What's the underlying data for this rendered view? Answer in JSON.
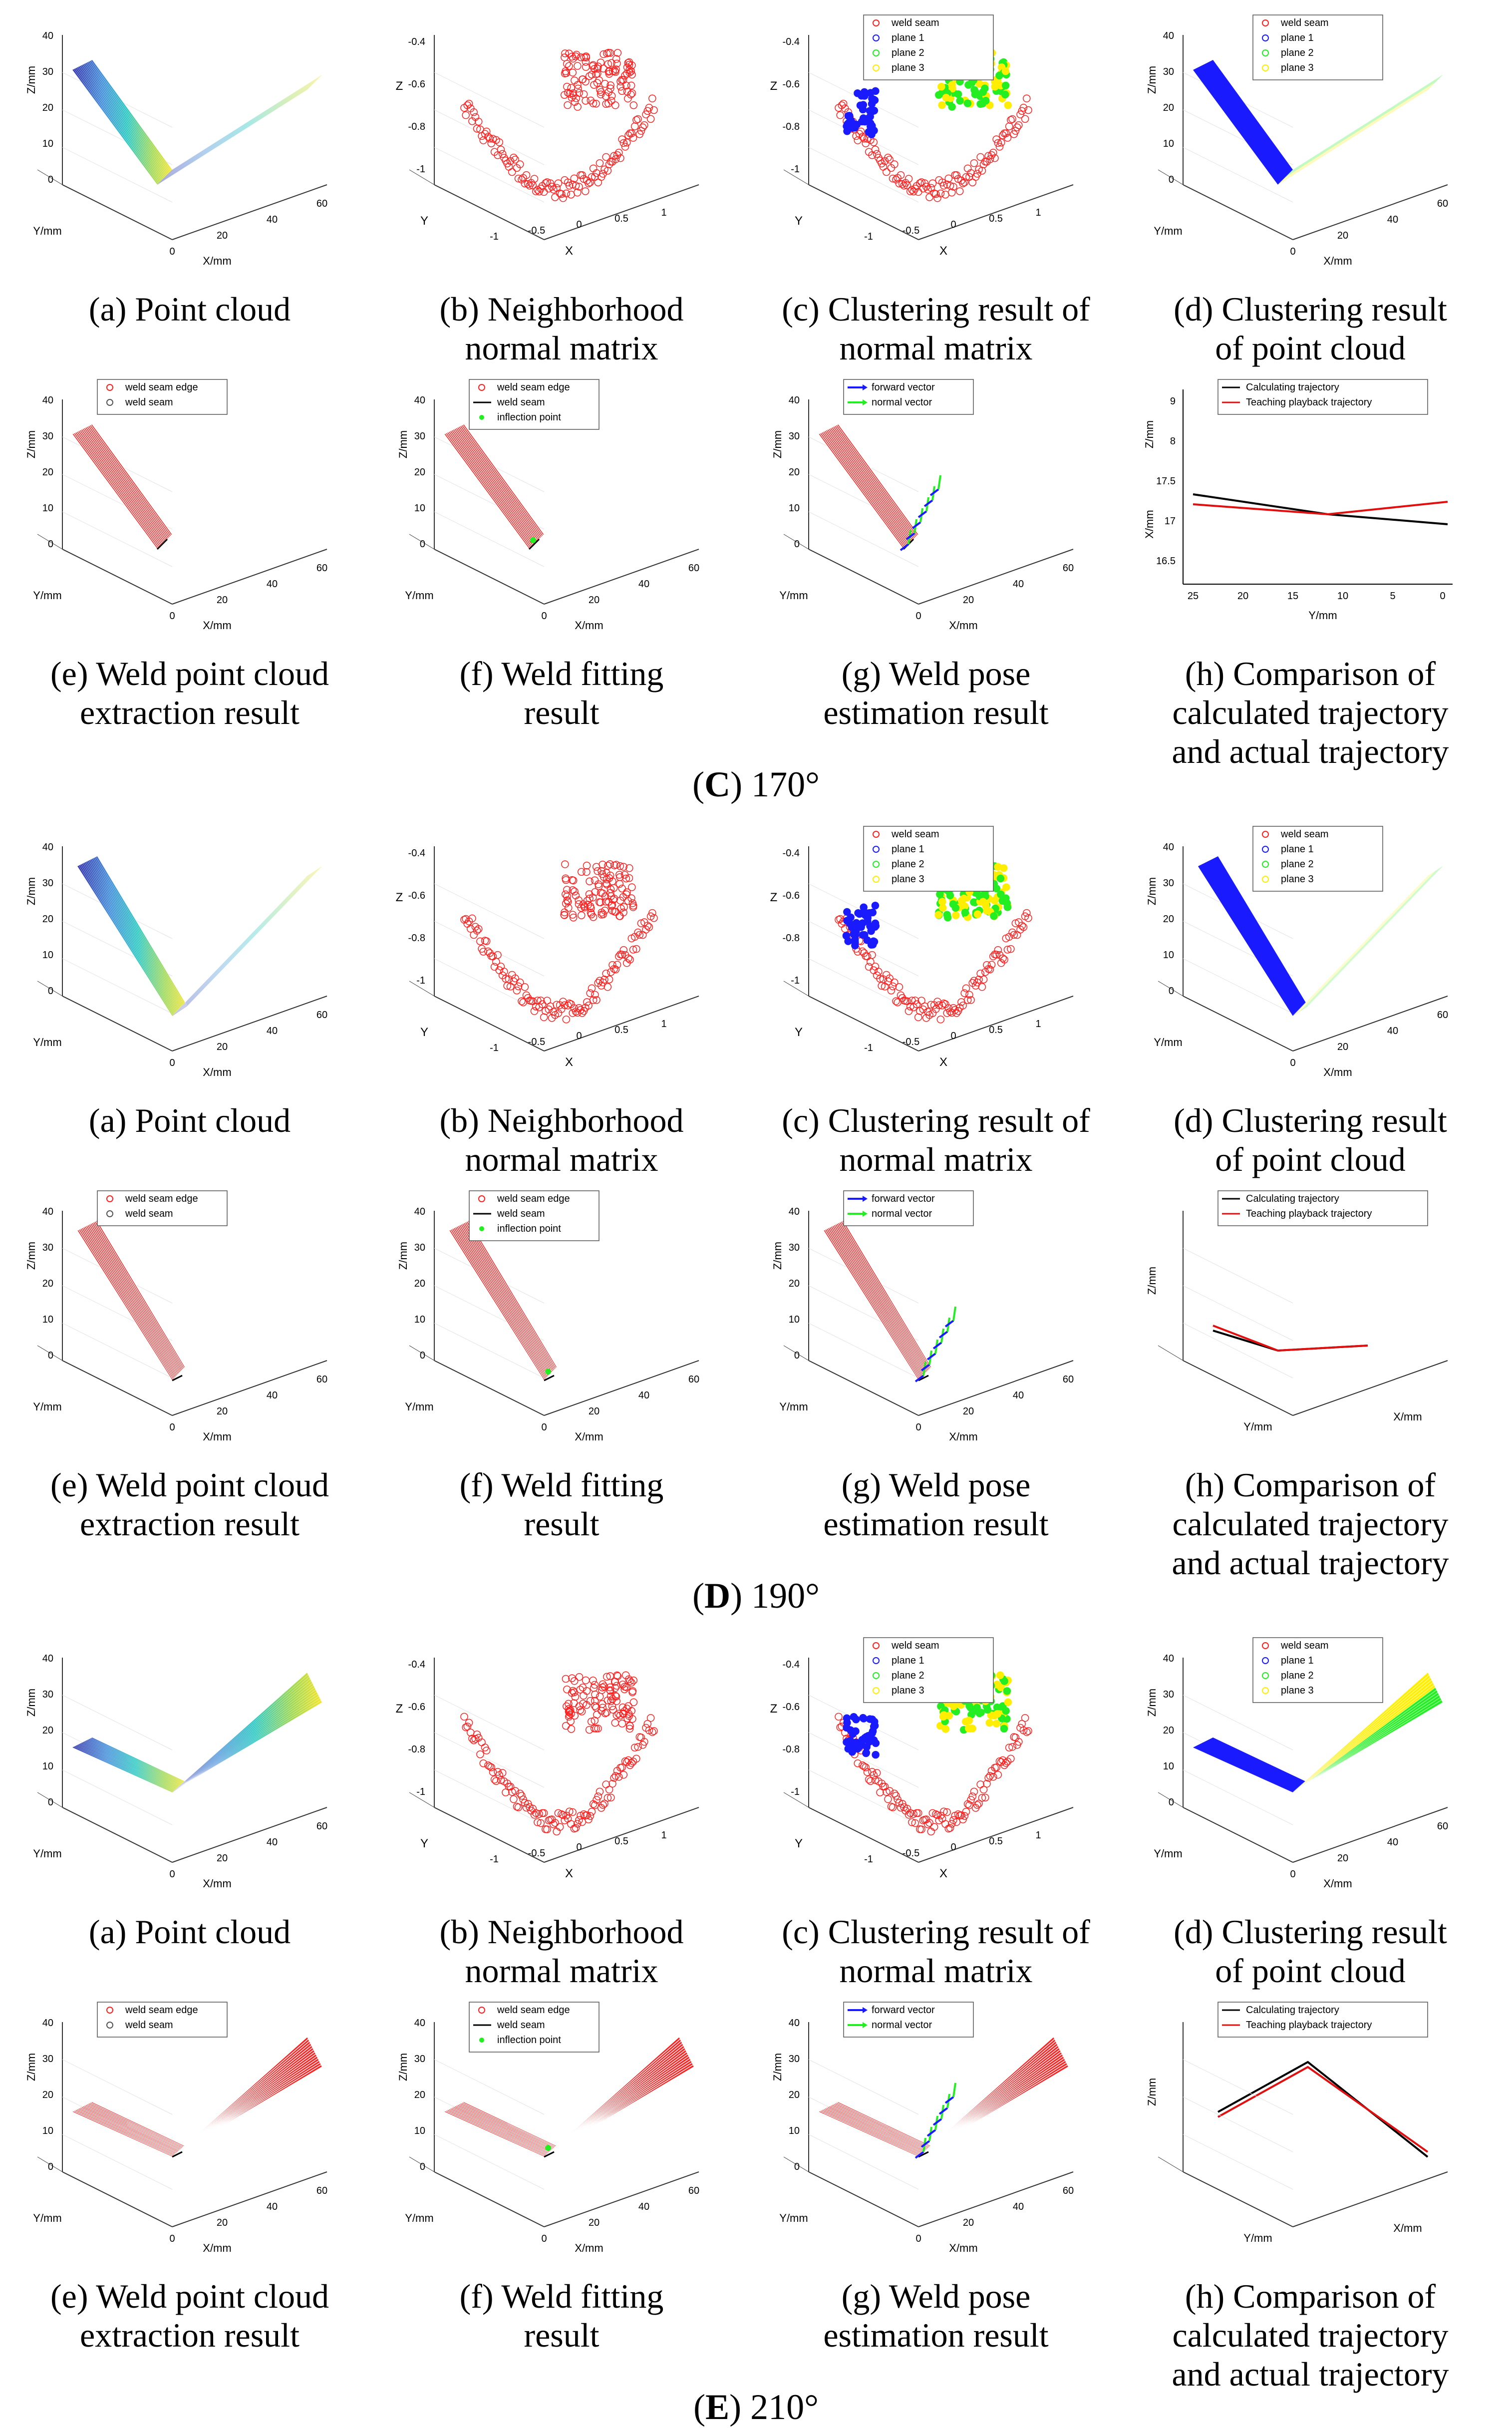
{
  "sections": [
    {
      "letter": "C",
      "angle": "170°",
      "captions": [
        [
          "(a) Point cloud"
        ],
        [
          "(b) Neighborhood",
          "normal matrix"
        ],
        [
          "(c) Clustering result of",
          "normal matrix"
        ],
        [
          "(d) Clustering result",
          "of point cloud"
        ],
        [
          "(e) Weld point cloud",
          "extraction result"
        ],
        [
          "(f) Weld fitting",
          "result"
        ],
        [
          "(g) Weld pose",
          "estimation result"
        ],
        [
          "(h) Comparison of",
          "calculated trajectory",
          "and actual trajectory"
        ]
      ]
    },
    {
      "letter": "D",
      "angle": "190°",
      "captions": [
        [
          "(a) Point cloud"
        ],
        [
          "(b) Neighborhood",
          "normal matrix"
        ],
        [
          "(c) Clustering result of",
          "normal matrix"
        ],
        [
          "(d) Clustering result",
          "of point cloud"
        ],
        [
          "(e) Weld point cloud",
          "extraction result"
        ],
        [
          "(f) Weld fitting",
          "result"
        ],
        [
          "(g) Weld pose",
          "estimation result"
        ],
        [
          "(h) Comparison of",
          "calculated trajectory",
          "and actual trajectory"
        ]
      ]
    },
    {
      "letter": "E",
      "angle": "210°",
      "captions": [
        [
          "(a) Point cloud"
        ],
        [
          "(b) Neighborhood",
          "normal matrix"
        ],
        [
          "(c) Clustering result of",
          "normal matrix"
        ],
        [
          "(d) Clustering result",
          "of point cloud"
        ],
        [
          "(e) Weld point cloud",
          "extraction result"
        ],
        [
          "(f) Weld fitting",
          "result"
        ],
        [
          "(g) Weld pose",
          "estimation result"
        ],
        [
          "(h) Comparison of",
          "calculated trajectory",
          "and actual trajectory"
        ]
      ]
    }
  ],
  "legends": {
    "cluster": [
      "weld seam",
      "plane 1",
      "plane 2",
      "plane 3"
    ],
    "extract": [
      "weld seam edge",
      "weld seam"
    ],
    "fit": [
      "weld seam edge",
      "weld seam",
      "inflection point"
    ],
    "pose": [
      "forward vector",
      "normal vector"
    ],
    "traj": [
      "Calculating trajectory",
      "Teaching playback trajectory"
    ]
  },
  "axes": {
    "x": "X/mm",
    "y": "Y/mm",
    "z": "Z/mm",
    "X": "X",
    "Y": "Y",
    "Z": "Z"
  },
  "colors": {
    "weld": "#ff2020",
    "plane1": "#1a1aff",
    "plane2": "#22ee22",
    "plane3": "#ffee00",
    "calc": "#000000",
    "teach": "#e01010"
  }
}
